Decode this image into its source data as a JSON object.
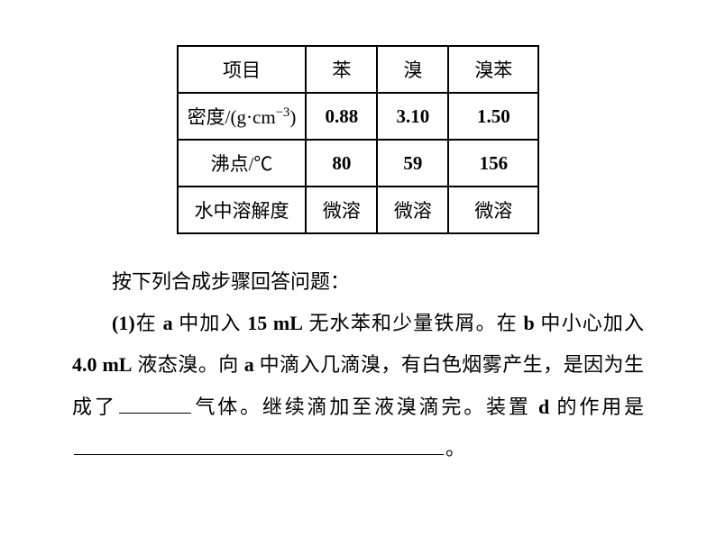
{
  "table": {
    "type": "table",
    "border_color": "#000000",
    "border_width": 2,
    "background_color": "#ffffff",
    "cell_fontsize": 21,
    "columns": [
      "项目",
      "苯",
      "溴",
      "溴苯"
    ],
    "rows": [
      {
        "label": "密度/(g·cm",
        "label_sup": "−3",
        "label_suffix": ")",
        "values": [
          "0.88",
          "3.10",
          "1.50"
        ],
        "bold": true
      },
      {
        "label": "沸点/℃",
        "values": [
          "80",
          "59",
          "156"
        ],
        "bold": true
      },
      {
        "label": "水中溶解度",
        "values": [
          "微溶",
          "微溶",
          "微溶"
        ],
        "bold": false
      }
    ]
  },
  "text": {
    "fontsize": 22,
    "line_height": 2.1,
    "color": "#000000",
    "indent_chars": 2,
    "p1": "按下列合成步骤回答问题：",
    "p2_part1_bold": "(1)",
    "p2_part2": "在 ",
    "p2_part3_bold": "a",
    "p2_part4": " 中加入 ",
    "p2_part5_bold": "15 mL",
    "p2_part6": " 无水苯和少量铁屑。在 ",
    "p2_part7_bold": "b",
    "p2_part8": " 中小心加入 ",
    "p2_part9_bold": "4.0 mL",
    "p2_part10": " 液态溴。向 ",
    "p2_part11_bold": "a",
    "p2_part12": " 中滴入几滴溴，有白色烟雾产生，是因为生成了",
    "p2_part13": "气体。继续滴加至液溴滴完。装置 ",
    "p2_part14_bold": "d",
    "p2_part15": " 的作用是",
    "p2_end": "。",
    "underline_short_width": 80,
    "underline_long_width": 410
  }
}
